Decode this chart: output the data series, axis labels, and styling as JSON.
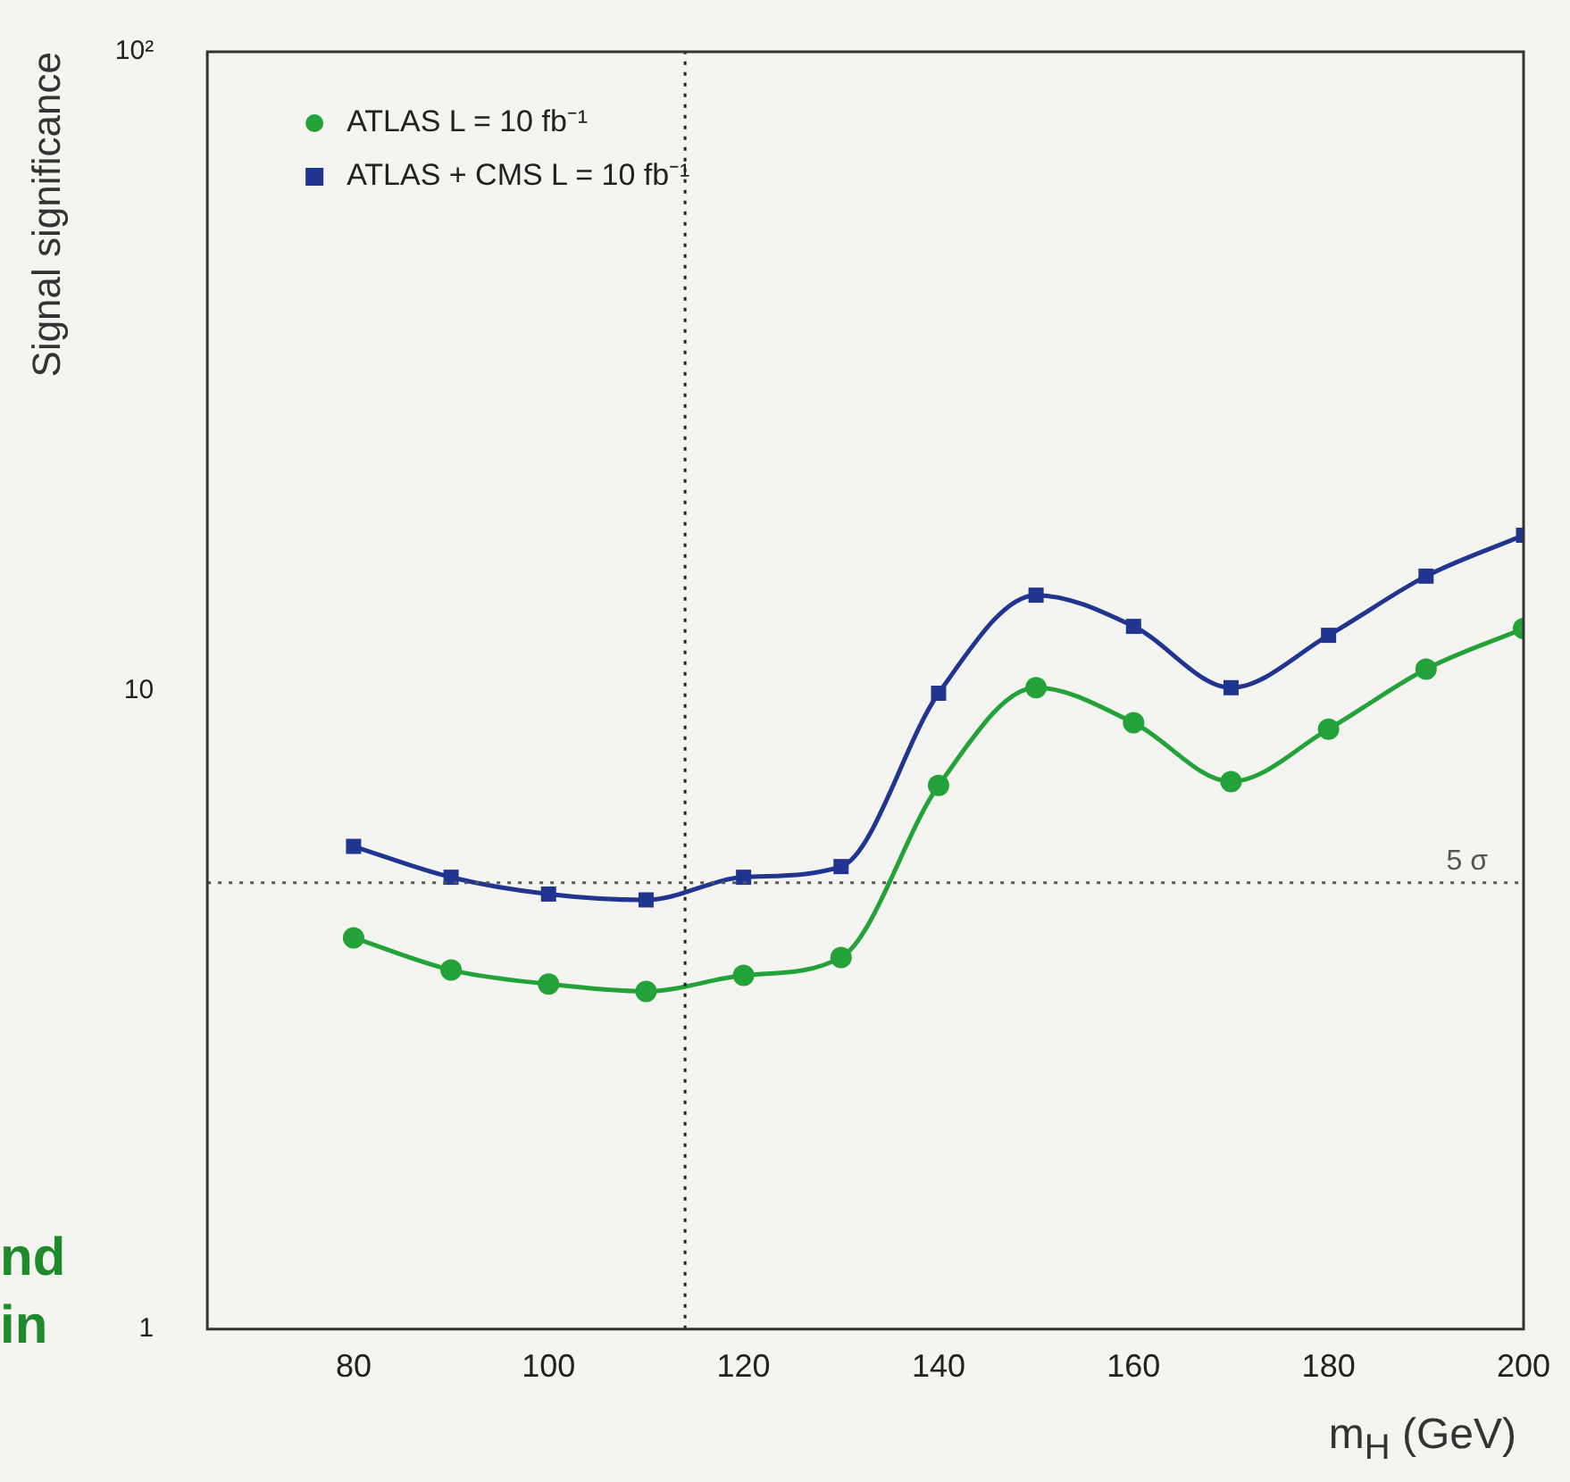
{
  "chart_data": {
    "type": "line",
    "ylabel": "Signal significance",
    "xlabel": "m$_{H}$ (GeV)",
    "log": "y",
    "xlim": [
      65,
      200
    ],
    "xticks": [
      80,
      100,
      120,
      140,
      160,
      180,
      200
    ],
    "ylim": [
      1,
      100
    ],
    "yticks": [
      1,
      10,
      {
        "value": 100,
        "label": "10²"
      }
    ],
    "legend": "top left",
    "line_style": "solid",
    "series": [
      {
        "name": "ATLAS L = 10 fb⁻¹",
        "color": "#23a23a",
        "marker": "circle",
        "x": [
          80,
          90,
          100,
          110,
          120,
          130,
          140,
          150,
          160,
          170,
          180,
          190,
          200
        ],
        "values": [
          4.1,
          3.65,
          3.47,
          3.38,
          3.58,
          3.82,
          7.1,
          10.1,
          8.9,
          7.2,
          8.7,
          10.8,
          12.5
        ]
      },
      {
        "name": "ATLAS + CMS L = 10 fb⁻¹",
        "color": "#1f3590",
        "marker": "square",
        "x": [
          80,
          90,
          100,
          110,
          120,
          130,
          140,
          150,
          160,
          170,
          180,
          190,
          200
        ],
        "values": [
          5.7,
          5.1,
          4.8,
          4.7,
          5.1,
          5.3,
          9.9,
          14.1,
          12.6,
          10.1,
          12.2,
          15.1,
          17.5
        ]
      }
    ],
    "ref_lines": [
      {
        "axis": "y",
        "value": 5,
        "label": "5 σ",
        "line_style": "dotted",
        "color": "#555555"
      },
      {
        "axis": "x",
        "value": 114,
        "label": null,
        "line_style": "dotted",
        "color": "#222222"
      }
    ],
    "annotations": [
      "nd",
      "in"
    ]
  }
}
